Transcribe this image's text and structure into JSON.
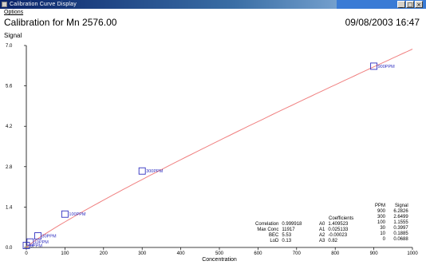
{
  "window": {
    "title": "Calibration Curve Display",
    "buttons": [
      "_",
      "□",
      "×"
    ]
  },
  "menu": {
    "options_label": "Options"
  },
  "header": {
    "title": "Calibration for Mn 2576.00",
    "datetime": "09/08/2003 16:47"
  },
  "chart_data": {
    "type": "scatter",
    "title": "Calibration for Mn 2576.00",
    "xlabel": "Concentration",
    "ylabel": "Signal",
    "xlim": [
      0,
      1000
    ],
    "ylim": [
      0,
      7.0
    ],
    "x_ticks": [
      "0",
      "100",
      "200",
      "300",
      "400",
      "500",
      "600",
      "700",
      "800",
      "900",
      "1000"
    ],
    "y_ticks": [
      "0.0",
      "1.4",
      "2.8",
      "4.2",
      "5.6",
      "7.0"
    ],
    "points": [
      {
        "x": 0,
        "y": 0.0688,
        "label": "0PPM"
      },
      {
        "x": 10,
        "y": 0.1885,
        "label": "10PPM"
      },
      {
        "x": 30,
        "y": 0.3997,
        "label": "30PPM"
      },
      {
        "x": 100,
        "y": 1.1555,
        "label": "100PPM"
      },
      {
        "x": 300,
        "y": 2.6499,
        "label": "300PPM"
      },
      {
        "x": 900,
        "y": 6.2826,
        "label": "900PPM"
      }
    ],
    "fit_curve_color": "#f08080",
    "marker_color": "#3030c0",
    "fit": {
      "correlation_label": "Correlation",
      "correlation": "0.999918",
      "max_conc_label": "Max Conc",
      "max_conc": "11917",
      "bec_label": "BEC",
      "bec": "5.53",
      "lod_label": "LoD",
      "lod": "0.13",
      "coefficients_label": "Coefficients",
      "coefficients": [
        {
          "name": "A0",
          "value": "1.409523"
        },
        {
          "name": "A1",
          "value": "0.025133"
        },
        {
          "name": "A2",
          "value": "-0.00023"
        },
        {
          "name": "A3",
          "value": "0.82"
        }
      ]
    },
    "table": {
      "headers": [
        "PPM",
        "Signal"
      ],
      "rows": [
        [
          "900",
          "6.2826"
        ],
        [
          "300",
          "2.6499"
        ],
        [
          "100",
          "1.1555"
        ],
        [
          "30",
          "0.3997"
        ],
        [
          "10",
          "0.1885"
        ],
        [
          "0",
          "0.0688"
        ]
      ]
    }
  }
}
